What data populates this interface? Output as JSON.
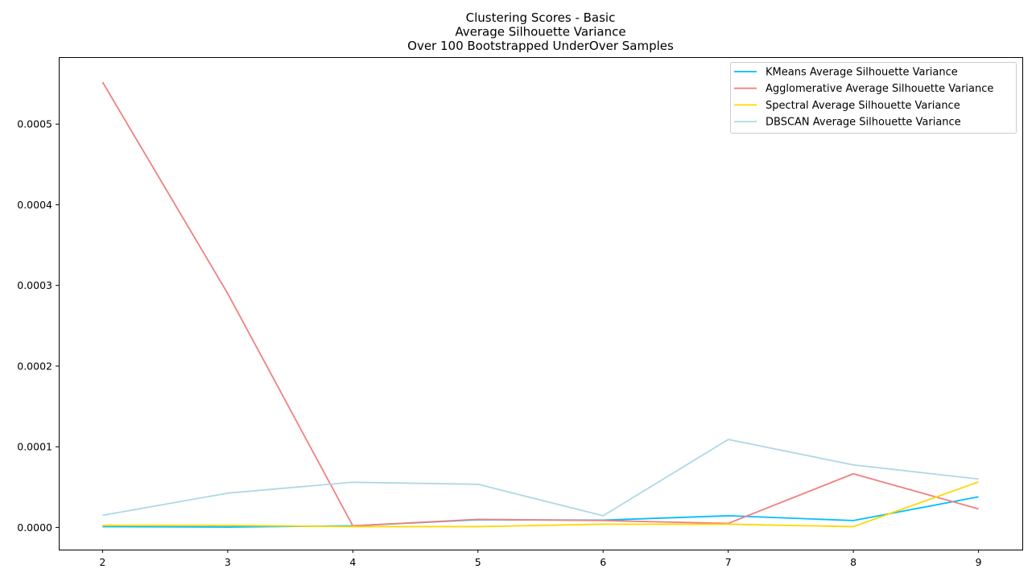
{
  "chart_data": {
    "type": "line",
    "title_lines": [
      "Clustering Scores - Basic",
      "Average Silhouette Variance",
      "Over 100 Bootstrapped UnderOver Samples"
    ],
    "xlabel": "",
    "ylabel": "",
    "x": [
      2,
      3,
      4,
      5,
      6,
      7,
      8,
      9
    ],
    "x_ticks": [
      "2",
      "3",
      "4",
      "5",
      "6",
      "7",
      "8",
      "9"
    ],
    "xlim": [
      1.65,
      9.35
    ],
    "ylim": [
      -2.75e-05,
      0.000583
    ],
    "y_ticks": [
      0.0,
      0.0001,
      0.0002,
      0.0003,
      0.0004,
      0.0005
    ],
    "y_tick_labels": [
      "0.0000",
      "0.0001",
      "0.0002",
      "0.0003",
      "0.0004",
      "0.0005"
    ],
    "legend_position": "top-right",
    "series": [
      {
        "name": "KMeans Average Silhouette Variance",
        "color": "#00bfff",
        "values": [
          1e-06,
          5e-07,
          2e-06,
          9.5e-06,
          9e-06,
          1.45e-05,
          8.5e-06,
          3.8e-05
        ]
      },
      {
        "name": "Agglomerative Average Silhouette Variance",
        "color": "#f08080",
        "values": [
          0.000552,
          0.00029,
          2e-06,
          1e-05,
          8.5e-06,
          5e-06,
          6.65e-05,
          2.3e-05
        ]
      },
      {
        "name": "Spectral Average Silhouette Variance",
        "color": "#ffd700",
        "values": [
          2.5e-06,
          2.5e-06,
          1e-06,
          1e-06,
          4e-06,
          4e-06,
          1e-06,
          5.65e-05
        ]
      },
      {
        "name": "DBSCAN Average Silhouette Variance",
        "color": "#add8e6",
        "values": [
          1.5e-05,
          4.25e-05,
          5.6e-05,
          5.35e-05,
          1.45e-05,
          0.000109,
          7.75e-05,
          6e-05
        ]
      }
    ]
  }
}
